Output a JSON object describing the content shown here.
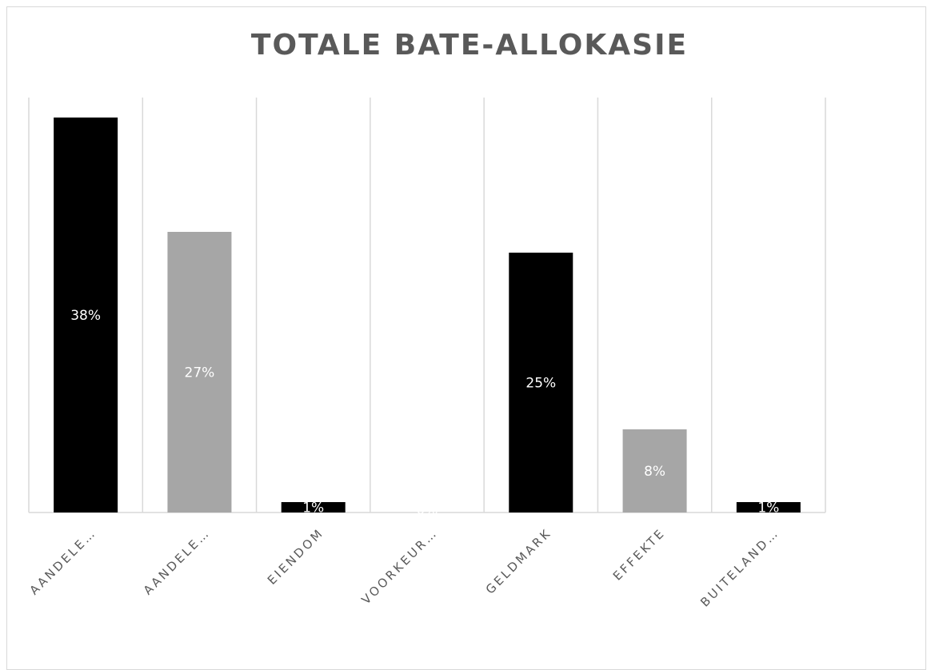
{
  "chart_data": {
    "type": "bar",
    "title": "TOTALE BATE-ALLOKASIE",
    "categories": [
      "AANDELE…",
      "AANDELE…",
      "EIENDOM",
      "VOORKEUR…",
      "GELDMARK",
      "EFFEKTE",
      "BUITELAND…"
    ],
    "values": [
      38,
      27,
      1,
      0,
      25,
      8,
      1
    ],
    "data_labels": [
      "38%",
      "27%",
      "1%",
      "0%",
      "25%",
      "8%",
      "1%"
    ],
    "bar_colors": [
      "#000000",
      "#a6a6a6",
      "#000000",
      "#a6a6a6",
      "#000000",
      "#a6a6a6",
      "#000000"
    ],
    "label_color": "#ffffff",
    "ylim": [
      0,
      40
    ],
    "grid": "vertical",
    "legend": "none"
  }
}
